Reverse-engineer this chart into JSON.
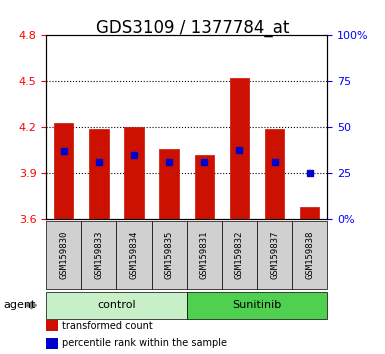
{
  "title": "GDS3109 / 1377784_at",
  "samples": [
    "GSM159830",
    "GSM159833",
    "GSM159834",
    "GSM159835",
    "GSM159831",
    "GSM159832",
    "GSM159837",
    "GSM159838"
  ],
  "bar_tops": [
    4.23,
    4.19,
    4.2,
    4.06,
    4.02,
    4.52,
    4.19,
    3.68
  ],
  "bar_bottom": 3.6,
  "blue_dots_pct": [
    37,
    31,
    35,
    31,
    31,
    38,
    31,
    25
  ],
  "ylim_left": [
    3.6,
    4.8
  ],
  "ylim_right": [
    0,
    100
  ],
  "yticks_left": [
    3.6,
    3.9,
    4.2,
    4.5,
    4.8
  ],
  "yticks_right": [
    0,
    25,
    50,
    75,
    100
  ],
  "ytick_labels_right": [
    "0%",
    "25",
    "50",
    "75",
    "100%"
  ],
  "groups": [
    {
      "label": "control",
      "indices": [
        0,
        1,
        2,
        3
      ],
      "color": "#c8f0c8"
    },
    {
      "label": "Sunitinib",
      "indices": [
        4,
        5,
        6,
        7
      ],
      "color": "#50d050"
    }
  ],
  "bar_color": "#cc1100",
  "dot_color": "#0000cc",
  "bar_width": 0.55,
  "agent_label": "agent",
  "legend_items": [
    {
      "label": "transformed count",
      "color": "#cc1100",
      "marker": "s"
    },
    {
      "label": "percentile rank within the sample",
      "color": "#0000cc",
      "marker": "s"
    }
  ],
  "bg_plot": "#ffffff",
  "bg_xlabel": "#d8d8d8",
  "grid_color": "#000000",
  "title_fontsize": 12,
  "tick_fontsize": 8,
  "label_fontsize": 8
}
